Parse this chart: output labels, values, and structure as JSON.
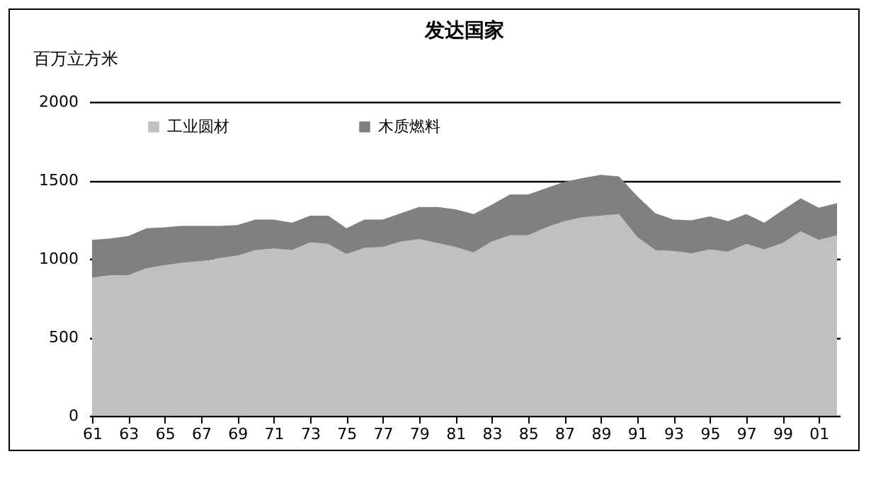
{
  "chart_data": {
    "type": "area",
    "title": "发达国家",
    "ylabel": "百万立方米",
    "stacked": true,
    "legend": "top left",
    "grid": "y",
    "categories": [
      "61",
      null,
      "63",
      null,
      "65",
      null,
      "67",
      null,
      "69",
      null,
      "71",
      null,
      "73",
      null,
      "75",
      null,
      "77",
      null,
      "79",
      null,
      "81",
      null,
      "83",
      null,
      "85",
      null,
      "87",
      null,
      "89",
      null,
      "91",
      null,
      "93",
      null,
      "95",
      null,
      "97",
      null,
      "99",
      null,
      "01",
      null
    ],
    "ylim": [
      0,
      2000
    ],
    "yticks": [
      0,
      500,
      1000,
      1500,
      2000
    ],
    "series": [
      {
        "name": "工业圆材",
        "color": "#c0c0c0",
        "values": [
          880,
          895,
          895,
          940,
          960,
          975,
          985,
          1005,
          1020,
          1055,
          1065,
          1055,
          1105,
          1095,
          1030,
          1070,
          1075,
          1110,
          1125,
          1100,
          1075,
          1040,
          1110,
          1150,
          1150,
          1200,
          1240,
          1265,
          1275,
          1285,
          1140,
          1055,
          1050,
          1035,
          1060,
          1045,
          1095,
          1060,
          1100,
          1175,
          1120,
          1150
        ]
      },
      {
        "name": "木质燃料",
        "color": "#808080",
        "values": [
          240,
          235,
          250,
          255,
          240,
          235,
          225,
          205,
          195,
          195,
          185,
          175,
          170,
          180,
          165,
          180,
          175,
          180,
          205,
          230,
          240,
          245,
          235,
          260,
          260,
          250,
          250,
          250,
          260,
          240,
          260,
          235,
          200,
          210,
          210,
          195,
          190,
          170,
          210,
          210,
          205,
          205
        ]
      }
    ]
  }
}
